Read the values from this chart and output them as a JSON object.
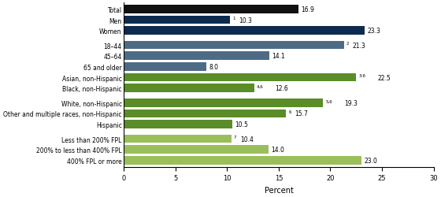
{
  "categories": [
    "Total",
    "Men",
    "Women",
    "18–44",
    "45–64",
    "65 and older",
    "Asian, non-Hispanic",
    "Black, non-Hispanic",
    "White, non-Hispanic",
    "Other and multiple races, non-Hispanic",
    "Hispanic",
    "Less than 200% FPL",
    "200% to less than 400% FPL",
    "400% FPL or more"
  ],
  "values": [
    16.9,
    10.3,
    23.3,
    21.3,
    14.1,
    8.0,
    22.5,
    12.6,
    19.3,
    15.7,
    10.5,
    10.4,
    14.0,
    23.0
  ],
  "superscripts": [
    "",
    "1",
    "",
    "2",
    "",
    "",
    "3-6",
    "4,6",
    "5,6",
    "6",
    "",
    "7",
    "",
    ""
  ],
  "plain_values": [
    "16.9",
    "10.3",
    "23.3",
    "21.3",
    "14.1",
    "8.0",
    "22.5",
    "12.6",
    "19.3",
    "15.7",
    "10.5",
    "10.4",
    "14.0",
    "23.0"
  ],
  "colors": [
    "#111111",
    "#0d2b4e",
    "#0d2b4e",
    "#4e6b85",
    "#4e6b85",
    "#4e6b85",
    "#5a8c28",
    "#5a8c28",
    "#5a8c28",
    "#5a8c28",
    "#5a8c28",
    "#9abf5a",
    "#9abf5a",
    "#9abf5a"
  ],
  "xlim": [
    0,
    30
  ],
  "xticks": [
    0,
    5,
    10,
    15,
    20,
    25,
    30
  ],
  "xlabel": "Percent",
  "background_color": "#ffffff",
  "bar_height": 0.78,
  "group_gaps": [
    0,
    0,
    1,
    1,
    1,
    1,
    1,
    1,
    1,
    1,
    1,
    1,
    1,
    1
  ]
}
